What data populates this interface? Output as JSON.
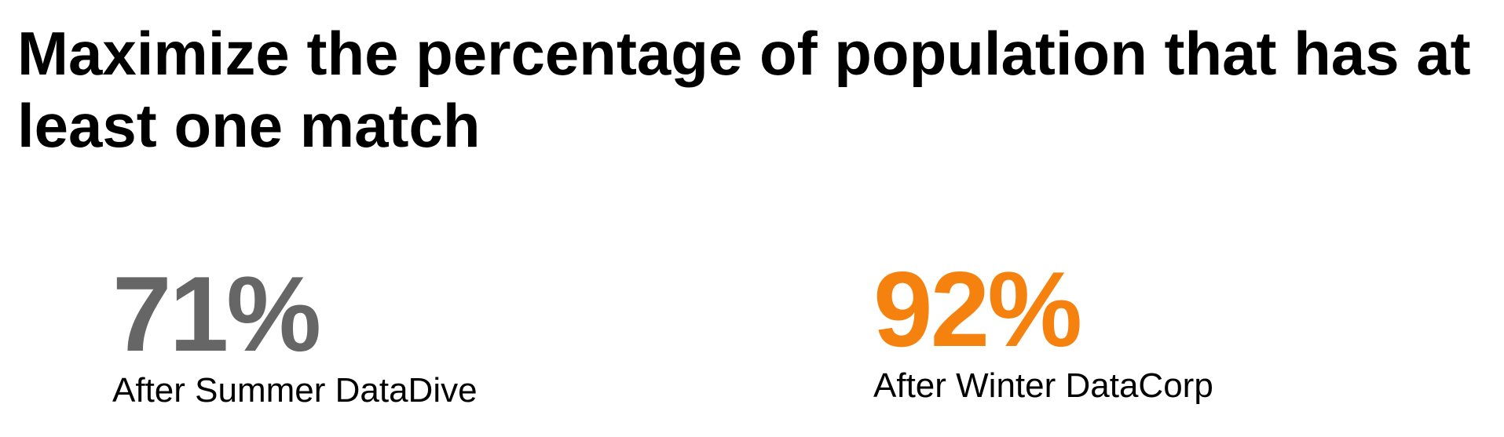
{
  "title": "Maximize the percentage of population that has at least one match",
  "colors": {
    "left_value": "#666666",
    "right_value": "#f5820f",
    "text": "#000000",
    "background": "#ffffff"
  },
  "stats": [
    {
      "value": "71%",
      "label": "After Summer DataDive"
    },
    {
      "value": "92%",
      "label": "After Winter DataCorp"
    }
  ]
}
